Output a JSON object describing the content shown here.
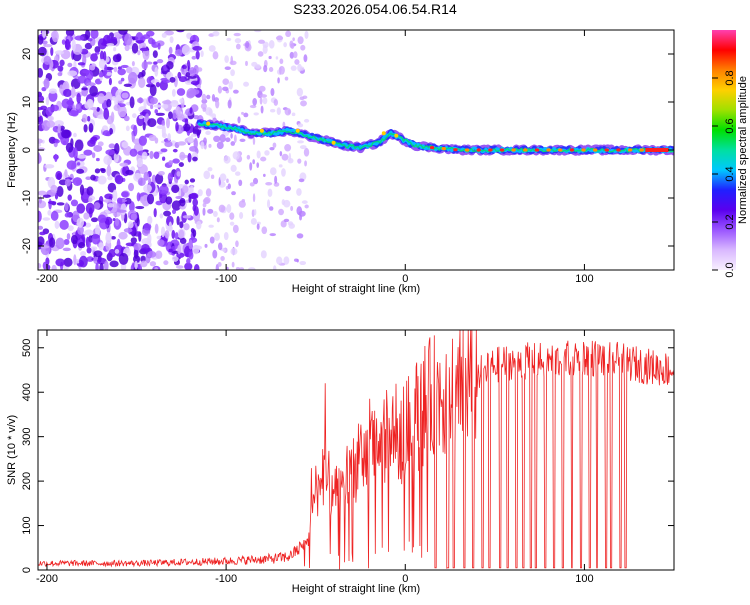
{
  "title": "S233.2026.054.06.54.R14",
  "colors": {
    "snr_line": "#ee2222",
    "background": "#ffffff"
  },
  "chart_data": [
    {
      "type": "heatmap",
      "xlabel": "Height of straight line (km)",
      "ylabel": "Frequency (Hz)",
      "xlim": [
        -205,
        150
      ],
      "ylim": [
        -25,
        25
      ],
      "x_ticks": [
        -200,
        -100,
        0,
        100
      ],
      "x_tick_labels": [
        "-200",
        "-100",
        "0",
        "100"
      ],
      "y_ticks": [
        -20,
        -10,
        0,
        10,
        20
      ],
      "y_tick_labels": [
        "-20",
        "-10",
        "0",
        "10",
        "20"
      ],
      "colorbar": {
        "label": "Normalized spectral amplitude",
        "range": [
          0,
          1
        ],
        "ticks": [
          0.0,
          0.2,
          0.4,
          0.6,
          0.8
        ],
        "tick_labels": [
          "0.0",
          "0.2",
          "0.4",
          "0.6",
          "0.8"
        ],
        "colormap": [
          "#f8f0ff",
          "#d9b8ff",
          "#9a55ff",
          "#5a00ee",
          "#2020ff",
          "#00c8ff",
          "#00e0a0",
          "#00e000",
          "#a0e000",
          "#ffd000",
          "#ff8000",
          "#ff0000",
          "#ff40b0"
        ]
      },
      "ridge": {
        "x": [
          -115,
          -105,
          -95,
          -85,
          -75,
          -65,
          -55,
          -45,
          -35,
          -25,
          -15,
          -8,
          -3,
          5,
          15,
          30,
          50,
          80,
          110,
          150
        ],
        "freq": [
          5.5,
          5.0,
          4.5,
          3.5,
          3.5,
          4.0,
          3.0,
          2.0,
          1.0,
          0.5,
          1.5,
          3.5,
          2.5,
          1.0,
          0.5,
          0.0,
          0.0,
          0.0,
          0.0,
          0.0
        ]
      },
      "noise_region": {
        "x_range": [
          -205,
          -115
        ],
        "sparse_x_range": [
          -115,
          -55
        ],
        "freq_range": [
          -25,
          25
        ]
      }
    },
    {
      "type": "line",
      "xlabel": "Height of straight line (km)",
      "ylabel": "SNR (10 * v/v)",
      "xlim": [
        -205,
        150
      ],
      "ylim": [
        0,
        540
      ],
      "x_ticks": [
        -200,
        -100,
        0,
        100
      ],
      "x_tick_labels": [
        "-200",
        "-100",
        "0",
        "100"
      ],
      "y_ticks": [
        0,
        100,
        200,
        300,
        400,
        500
      ],
      "y_tick_labels": [
        "0",
        "100",
        "200",
        "300",
        "400",
        "500"
      ],
      "envelope": {
        "x": [
          -205,
          -150,
          -100,
          -75,
          -65,
          -55,
          -50,
          -45,
          -40,
          -30,
          -20,
          -10,
          0,
          10,
          20,
          30,
          40,
          50,
          60,
          80,
          100,
          120,
          140,
          150
        ],
        "snr": [
          15,
          15,
          20,
          25,
          30,
          60,
          180,
          230,
          160,
          230,
          260,
          300,
          310,
          370,
          400,
          420,
          440,
          460,
          470,
          470,
          480,
          470,
          455,
          450
        ]
      },
      "dropouts_x": [
        17,
        24,
        27,
        33,
        38,
        43,
        47,
        53,
        57,
        62,
        66,
        70,
        73,
        78,
        83,
        88,
        93,
        98,
        103,
        107,
        112,
        115,
        120,
        123
      ]
    }
  ]
}
